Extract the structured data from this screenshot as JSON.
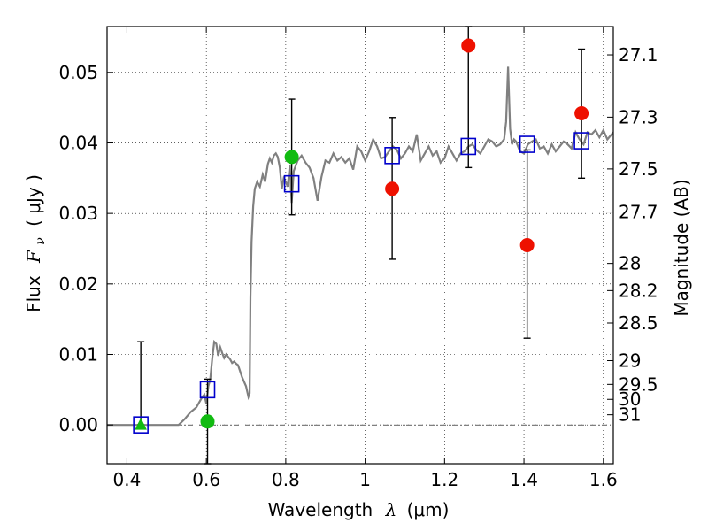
{
  "chart_data": {
    "type": "scatter",
    "xlabel_prefix": "Wavelength",
    "xlabel_symbol": "λ",
    "xlabel_unit": "(μm)",
    "ylabel_prefix": "Flux",
    "ylabel_symbol": "F",
    "ylabel_subscript": "ν",
    "ylabel_unit": "( μJy )",
    "y2label": "Magnitude (AB)",
    "xlim": [
      0.35,
      1.625
    ],
    "ylim": [
      -0.0055,
      0.0565
    ],
    "grid": true,
    "x_ticks": [
      0.4,
      0.6,
      0.8,
      1.0,
      1.2,
      1.4,
      1.6
    ],
    "x_tick_labels": [
      "0.4",
      "0.6",
      "0.8",
      "1",
      "1.2",
      "1.4",
      "1.6"
    ],
    "y_ticks": [
      0.0,
      0.01,
      0.02,
      0.03,
      0.04,
      0.05
    ],
    "y_tick_labels": [
      "0.00",
      "0.01",
      "0.02",
      "0.03",
      "0.04",
      "0.05"
    ],
    "mag_ticks": [
      {
        "mag": 27.1,
        "label": "27.1"
      },
      {
        "mag": 27.3,
        "label": "27.3"
      },
      {
        "mag": 27.5,
        "label": "27.5"
      },
      {
        "mag": 27.7,
        "label": "27.7"
      },
      {
        "mag": 28.0,
        "label": "28"
      },
      {
        "mag": 28.2,
        "label": "28.2"
      },
      {
        "mag": 28.5,
        "label": "28.5"
      },
      {
        "mag": 29.0,
        "label": "29"
      },
      {
        "mag": 29.5,
        "label": "29.5"
      },
      {
        "mag": 30.0,
        "label": "30"
      },
      {
        "mag": 31.0,
        "label": "31"
      }
    ],
    "series": [
      {
        "kind": "line",
        "color": "#808080",
        "x": [
          0.35,
          0.53,
          0.545,
          0.56,
          0.575,
          0.585,
          0.59,
          0.595,
          0.6,
          0.605,
          0.61,
          0.615,
          0.62,
          0.625,
          0.63,
          0.635,
          0.64,
          0.645,
          0.65,
          0.66,
          0.665,
          0.67,
          0.675,
          0.68,
          0.69,
          0.7,
          0.706,
          0.709,
          0.711,
          0.714,
          0.718,
          0.722,
          0.728,
          0.735,
          0.742,
          0.748,
          0.755,
          0.76,
          0.765,
          0.77,
          0.775,
          0.78,
          0.785,
          0.79,
          0.795,
          0.8,
          0.805,
          0.81,
          0.815,
          0.82,
          0.83,
          0.84,
          0.85,
          0.86,
          0.87,
          0.88,
          0.89,
          0.9,
          0.91,
          0.92,
          0.93,
          0.94,
          0.95,
          0.96,
          0.97,
          0.98,
          0.99,
          1.0,
          1.01,
          1.02,
          1.03,
          1.04,
          1.05,
          1.06,
          1.07,
          1.08,
          1.09,
          1.1,
          1.11,
          1.12,
          1.13,
          1.14,
          1.15,
          1.16,
          1.17,
          1.18,
          1.19,
          1.2,
          1.21,
          1.22,
          1.23,
          1.24,
          1.25,
          1.26,
          1.27,
          1.28,
          1.29,
          1.3,
          1.31,
          1.32,
          1.33,
          1.34,
          1.35,
          1.355,
          1.36,
          1.365,
          1.37,
          1.375,
          1.38,
          1.39,
          1.4,
          1.41,
          1.42,
          1.43,
          1.44,
          1.45,
          1.46,
          1.47,
          1.48,
          1.49,
          1.5,
          1.51,
          1.52,
          1.53,
          1.54,
          1.55,
          1.56,
          1.57,
          1.58,
          1.59,
          1.6,
          1.61,
          1.625
        ],
        "y": [
          0.0,
          0.0,
          0.0008,
          0.0018,
          0.0025,
          0.0035,
          0.004,
          0.0043,
          0.003,
          0.0055,
          0.0065,
          0.0095,
          0.0118,
          0.0115,
          0.0098,
          0.011,
          0.0102,
          0.0095,
          0.01,
          0.0093,
          0.0088,
          0.009,
          0.0087,
          0.0085,
          0.0068,
          0.0055,
          0.004,
          0.0045,
          0.018,
          0.026,
          0.031,
          0.0335,
          0.0345,
          0.0338,
          0.0355,
          0.0345,
          0.037,
          0.0378,
          0.0372,
          0.0382,
          0.0385,
          0.038,
          0.0365,
          0.0335,
          0.035,
          0.0345,
          0.0338,
          0.0368,
          0.0315,
          0.036,
          0.0375,
          0.0382,
          0.0372,
          0.0365,
          0.035,
          0.0318,
          0.0352,
          0.0375,
          0.0372,
          0.0385,
          0.0375,
          0.038,
          0.0372,
          0.0378,
          0.0362,
          0.0395,
          0.0388,
          0.0375,
          0.0388,
          0.0405,
          0.0395,
          0.0378,
          0.038,
          0.0388,
          0.0395,
          0.039,
          0.0378,
          0.0385,
          0.0395,
          0.0388,
          0.0412,
          0.0375,
          0.0385,
          0.0395,
          0.0382,
          0.0388,
          0.0372,
          0.0378,
          0.0395,
          0.0385,
          0.0375,
          0.0385,
          0.0388,
          0.0395,
          0.0398,
          0.039,
          0.0385,
          0.0395,
          0.0405,
          0.0402,
          0.0395,
          0.0398,
          0.0405,
          0.043,
          0.0508,
          0.042,
          0.0398,
          0.0405,
          0.0402,
          0.0388,
          0.0385,
          0.0398,
          0.0402,
          0.0405,
          0.0392,
          0.0395,
          0.0385,
          0.0398,
          0.0388,
          0.0395,
          0.0402,
          0.0398,
          0.0392,
          0.0415,
          0.0405,
          0.0398,
          0.0415,
          0.0412,
          0.0418,
          0.0408,
          0.0418,
          0.0405,
          0.0415
        ]
      },
      {
        "kind": "points",
        "marker": "square",
        "color": "#0000cc",
        "x": [
          0.435,
          0.603,
          0.815,
          1.068,
          1.26,
          1.408,
          1.545
        ],
        "y": [
          0.0,
          0.005,
          0.0342,
          0.0382,
          0.0395,
          0.0398,
          0.0403
        ]
      },
      {
        "kind": "points",
        "marker": "circle",
        "color": "#ee1100",
        "x": [
          1.068,
          1.26,
          1.408,
          1.545
        ],
        "y": [
          0.0335,
          0.0538,
          0.0255,
          0.0442
        ],
        "yerr_low": [
          0.0235,
          0.0365,
          0.0123,
          0.035
        ],
        "yerr_high": [
          0.0436,
          0.0565,
          0.039,
          0.0533
        ]
      },
      {
        "kind": "points",
        "marker": "circle",
        "color": "#11bb11",
        "x": [
          0.603,
          0.815
        ],
        "y": [
          0.0005,
          0.038
        ],
        "yerr_low": [
          -0.0055,
          0.0298
        ],
        "yerr_high": [
          0.0065,
          0.0462
        ]
      },
      {
        "kind": "points",
        "marker": "triangle",
        "color": "#11bb11",
        "x": [
          0.435
        ],
        "y": [
          0.0
        ],
        "yerr_low": [
          0.0
        ],
        "yerr_high": [
          0.0118
        ]
      }
    ]
  }
}
